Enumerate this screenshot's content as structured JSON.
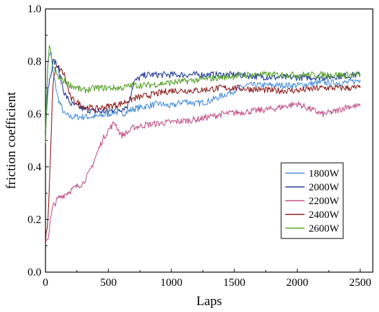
{
  "chart_data": {
    "type": "line",
    "title": "",
    "xlabel": "Laps",
    "ylabel": "friction coefficient",
    "xlim": [
      0,
      2600
    ],
    "ylim": [
      0.0,
      1.0
    ],
    "xticks": [
      0,
      500,
      1000,
      1500,
      2000,
      2500
    ],
    "yticks": [
      0.0,
      0.2,
      0.4,
      0.6,
      0.8,
      1.0
    ],
    "xtick_labels": [
      "0",
      "500",
      "1000",
      "1500",
      "2000",
      "2500"
    ],
    "ytick_labels": [
      "0.0",
      "0.2",
      "0.4",
      "0.6",
      "0.8",
      "1.0"
    ],
    "legend_position": "right-middle",
    "series": [
      {
        "name": "1800W",
        "color": "#4a90d9",
        "points": [
          [
            0,
            0.55
          ],
          [
            20,
            0.8
          ],
          [
            40,
            0.84
          ],
          [
            60,
            0.76
          ],
          [
            100,
            0.66
          ],
          [
            150,
            0.6
          ],
          [
            200,
            0.59
          ],
          [
            300,
            0.59
          ],
          [
            400,
            0.59
          ],
          [
            500,
            0.6
          ],
          [
            550,
            0.61
          ],
          [
            600,
            0.6
          ],
          [
            700,
            0.62
          ],
          [
            800,
            0.63
          ],
          [
            900,
            0.64
          ],
          [
            1000,
            0.63
          ],
          [
            1100,
            0.65
          ],
          [
            1200,
            0.64
          ],
          [
            1300,
            0.65
          ],
          [
            1400,
            0.67
          ],
          [
            1500,
            0.69
          ],
          [
            1600,
            0.71
          ],
          [
            1800,
            0.71
          ],
          [
            2000,
            0.71
          ],
          [
            2200,
            0.72
          ],
          [
            2400,
            0.72
          ],
          [
            2500,
            0.73
          ]
        ]
      },
      {
        "name": "2000W",
        "color": "#1f3a93",
        "points": [
          [
            0,
            0.55
          ],
          [
            20,
            0.7
          ],
          [
            40,
            0.75
          ],
          [
            60,
            0.8
          ],
          [
            80,
            0.8
          ],
          [
            100,
            0.77
          ],
          [
            150,
            0.68
          ],
          [
            200,
            0.64
          ],
          [
            300,
            0.62
          ],
          [
            400,
            0.61
          ],
          [
            500,
            0.61
          ],
          [
            550,
            0.62
          ],
          [
            600,
            0.62
          ],
          [
            650,
            0.63
          ],
          [
            680,
            0.68
          ],
          [
            700,
            0.72
          ],
          [
            750,
            0.74
          ],
          [
            800,
            0.75
          ],
          [
            1000,
            0.75
          ],
          [
            1200,
            0.75
          ],
          [
            1500,
            0.75
          ],
          [
            1800,
            0.74
          ],
          [
            2000,
            0.74
          ],
          [
            2200,
            0.74
          ],
          [
            2500,
            0.75
          ]
        ]
      },
      {
        "name": "2200W",
        "color": "#c2528a",
        "points": [
          [
            0,
            0.12
          ],
          [
            20,
            0.13
          ],
          [
            40,
            0.2
          ],
          [
            60,
            0.25
          ],
          [
            100,
            0.28
          ],
          [
            200,
            0.31
          ],
          [
            300,
            0.34
          ],
          [
            350,
            0.38
          ],
          [
            400,
            0.44
          ],
          [
            450,
            0.5
          ],
          [
            500,
            0.54
          ],
          [
            550,
            0.57
          ],
          [
            600,
            0.52
          ],
          [
            650,
            0.53
          ],
          [
            700,
            0.55
          ],
          [
            800,
            0.56
          ],
          [
            1000,
            0.57
          ],
          [
            1200,
            0.58
          ],
          [
            1400,
            0.6
          ],
          [
            1600,
            0.61
          ],
          [
            1800,
            0.62
          ],
          [
            2000,
            0.64
          ],
          [
            2100,
            0.62
          ],
          [
            2200,
            0.6
          ],
          [
            2300,
            0.61
          ],
          [
            2400,
            0.63
          ],
          [
            2500,
            0.63
          ]
        ]
      },
      {
        "name": "2400W",
        "color": "#8b1a1a",
        "points": [
          [
            0,
            0.12
          ],
          [
            20,
            0.2
          ],
          [
            40,
            0.45
          ],
          [
            60,
            0.72
          ],
          [
            80,
            0.77
          ],
          [
            100,
            0.78
          ],
          [
            150,
            0.75
          ],
          [
            200,
            0.66
          ],
          [
            300,
            0.63
          ],
          [
            400,
            0.62
          ],
          [
            500,
            0.63
          ],
          [
            600,
            0.64
          ],
          [
            700,
            0.66
          ],
          [
            800,
            0.67
          ],
          [
            900,
            0.68
          ],
          [
            1000,
            0.69
          ],
          [
            1200,
            0.69
          ],
          [
            1400,
            0.7
          ],
          [
            1500,
            0.7
          ],
          [
            1800,
            0.69
          ],
          [
            2000,
            0.69
          ],
          [
            2200,
            0.7
          ],
          [
            2400,
            0.7
          ],
          [
            2500,
            0.7
          ]
        ]
      },
      {
        "name": "2600W",
        "color": "#5aa02c",
        "points": [
          [
            0,
            0.5
          ],
          [
            20,
            0.8
          ],
          [
            30,
            0.85
          ],
          [
            40,
            0.84
          ],
          [
            60,
            0.78
          ],
          [
            100,
            0.74
          ],
          [
            200,
            0.71
          ],
          [
            300,
            0.69
          ],
          [
            400,
            0.7
          ],
          [
            500,
            0.7
          ],
          [
            600,
            0.7
          ],
          [
            700,
            0.71
          ],
          [
            800,
            0.71
          ],
          [
            1000,
            0.72
          ],
          [
            1200,
            0.73
          ],
          [
            1400,
            0.74
          ],
          [
            1600,
            0.75
          ],
          [
            1800,
            0.75
          ],
          [
            2000,
            0.75
          ],
          [
            2200,
            0.75
          ],
          [
            2500,
            0.75
          ]
        ]
      }
    ]
  }
}
